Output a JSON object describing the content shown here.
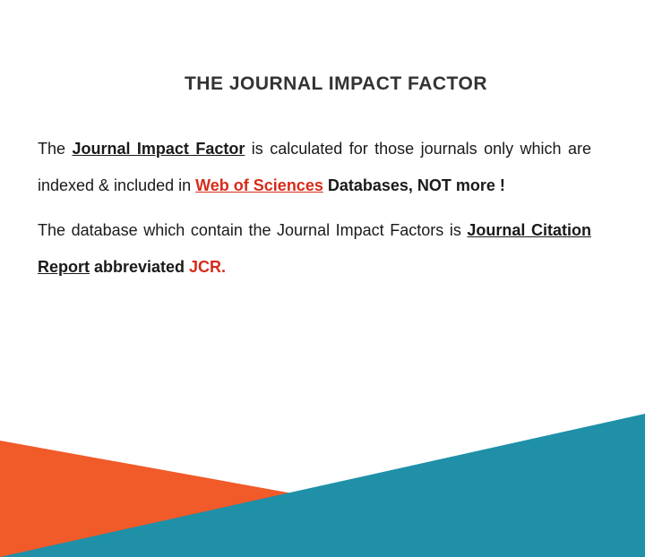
{
  "colors": {
    "background": "#ffffff",
    "text": "#1a1a1a",
    "highlight": "#d62c1a",
    "triangle_orange": "#f15a29",
    "triangle_teal": "#1f90a8"
  },
  "typography": {
    "title_fontsize": 21,
    "body_fontsize": 18,
    "line_height": 2.3,
    "font_family": "Arial"
  },
  "title": "THE JOURNAL IMPACT FACTOR",
  "paragraphs": [
    {
      "segments": [
        {
          "text": "The ",
          "bold": false,
          "red": false,
          "underline": false
        },
        {
          "text": "Journal Impact Factor",
          "bold": true,
          "red": false,
          "underline": true
        },
        {
          "text": " is calculated for those journals only which are indexed & included in ",
          "bold": false,
          "red": false,
          "underline": false
        },
        {
          "text": "Web of Sciences",
          "bold": true,
          "red": true,
          "underline": true
        },
        {
          "text": " Databases, ",
          "bold": true,
          "red": false,
          "underline": false
        },
        {
          "text": "NOT more !",
          "bold": true,
          "red": false,
          "underline": false
        }
      ]
    },
    {
      "segments": [
        {
          "text": "The database which contain the Journal Impact Factors is ",
          "bold": false,
          "red": false,
          "underline": false
        },
        {
          "text": "Journal Citation Report",
          "bold": true,
          "red": false,
          "underline": true
        },
        {
          "text": " abbreviated ",
          "bold": true,
          "red": false,
          "underline": false
        },
        {
          "text": "JCR.",
          "bold": true,
          "red": true,
          "underline": false
        }
      ]
    }
  ],
  "decor": {
    "triangle_orange": {
      "base_width": 720,
      "height": 130,
      "anchor": "bottom-left"
    },
    "triangle_teal": {
      "base_width": 720,
      "height": 160,
      "anchor": "bottom-right"
    }
  }
}
